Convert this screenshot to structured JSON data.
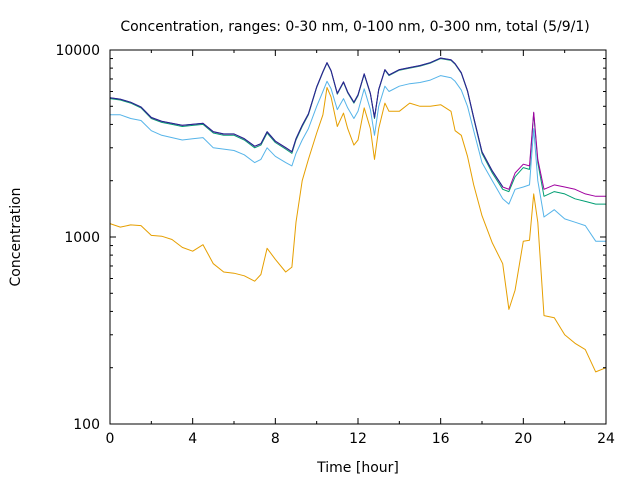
{
  "chart_data": {
    "type": "line",
    "title": "Concentration, ranges: 0-30 nm, 0-100 nm, 0-300 nm, total (5/9/1)",
    "xlabel": "Time [hour]",
    "ylabel": "Concentration",
    "xlim": [
      0,
      24
    ],
    "ylim": [
      100,
      10000
    ],
    "yscale": "log",
    "grid": false,
    "legend": "none",
    "x_ticks": [
      0,
      4,
      8,
      12,
      16,
      20,
      24
    ],
    "x_tick_labels": [
      "0",
      "4",
      "8",
      "12",
      "16",
      "20",
      "24"
    ],
    "y_ticks": [
      100,
      1000,
      10000
    ],
    "y_tick_labels": [
      "100",
      "1000",
      "10000"
    ],
    "series": [
      {
        "color": "#e69f00",
        "x": [
          0,
          0.5,
          1,
          1.5,
          2,
          2.5,
          3,
          3.5,
          4,
          4.5,
          5,
          5.5,
          6,
          6.5,
          7,
          7.3,
          7.6,
          8,
          8.5,
          8.8,
          9,
          9.3,
          9.6,
          10,
          10.3,
          10.5,
          10.7,
          11,
          11.3,
          11.5,
          11.8,
          12,
          12.3,
          12.6,
          12.8,
          13,
          13.3,
          13.5,
          14,
          14.5,
          15,
          15.5,
          16,
          16.5,
          16.7,
          17,
          17.3,
          17.6,
          18,
          18.5,
          19,
          19.3,
          19.6,
          20,
          20.3,
          20.5,
          20.7,
          21,
          21.5,
          22,
          22.5,
          23,
          23.5,
          24
        ],
        "y": [
          1180,
          1130,
          1160,
          1150,
          1020,
          1010,
          970,
          880,
          840,
          910,
          720,
          650,
          640,
          620,
          580,
          630,
          870,
          760,
          650,
          690,
          1200,
          2000,
          2600,
          3600,
          4500,
          6300,
          5600,
          3900,
          4600,
          3800,
          3100,
          3300,
          4900,
          3800,
          2600,
          3800,
          5200,
          4700,
          4700,
          5200,
          5000,
          5000,
          5100,
          4700,
          3700,
          3500,
          2700,
          1900,
          1300,
          930,
          720,
          410,
          520,
          950,
          960,
          1700,
          1200,
          380,
          370,
          300,
          270,
          250,
          190,
          200
        ]
      },
      {
        "color": "#56b4e9",
        "x": [
          0,
          0.5,
          1,
          1.5,
          2,
          2.5,
          3,
          3.5,
          4,
          4.5,
          5,
          5.5,
          6,
          6.5,
          7,
          7.3,
          7.6,
          8,
          8.5,
          8.8,
          9,
          9.3,
          9.6,
          10,
          10.3,
          10.5,
          10.7,
          11,
          11.3,
          11.5,
          11.8,
          12,
          12.3,
          12.6,
          12.8,
          13,
          13.3,
          13.5,
          14,
          14.5,
          15,
          15.5,
          16,
          16.5,
          16.7,
          17,
          17.3,
          17.6,
          18,
          18.5,
          19,
          19.3,
          19.6,
          20,
          20.3,
          20.5,
          20.7,
          21,
          21.5,
          22,
          22.5,
          23,
          23.5,
          24
        ],
        "y": [
          4500,
          4500,
          4300,
          4200,
          3700,
          3500,
          3400,
          3300,
          3350,
          3400,
          3000,
          2950,
          2900,
          2750,
          2500,
          2600,
          3000,
          2700,
          2500,
          2400,
          2800,
          3300,
          3800,
          5000,
          6000,
          6800,
          6200,
          4800,
          5500,
          4900,
          4300,
          4700,
          6200,
          4800,
          3500,
          5000,
          6400,
          6000,
          6400,
          6600,
          6700,
          6900,
          7300,
          7100,
          6800,
          6100,
          5000,
          3700,
          2500,
          2000,
          1600,
          1500,
          1800,
          1850,
          1900,
          3800,
          2000,
          1280,
          1400,
          1250,
          1200,
          1150,
          950,
          950
        ]
      },
      {
        "color": "#009e73",
        "x": [
          0,
          0.5,
          1,
          1.5,
          2,
          2.5,
          3,
          3.5,
          4,
          4.5,
          5,
          5.5,
          6,
          6.5,
          7,
          7.3,
          7.6,
          8,
          8.5,
          8.8,
          9,
          9.3,
          9.6,
          10,
          10.3,
          10.5,
          10.7,
          11,
          11.3,
          11.5,
          11.8,
          12,
          12.3,
          12.6,
          12.8,
          13,
          13.3,
          13.5,
          14,
          14.5,
          15,
          15.5,
          16,
          16.5,
          16.7,
          17,
          17.3,
          17.6,
          18,
          18.5,
          19,
          19.3,
          19.6,
          20,
          20.3,
          20.5,
          20.7,
          21,
          21.5,
          22,
          22.5,
          23,
          23.5,
          24
        ],
        "y": [
          5500,
          5400,
          5200,
          4900,
          4300,
          4100,
          4000,
          3900,
          3950,
          4000,
          3600,
          3500,
          3500,
          3300,
          3000,
          3100,
          3600,
          3200,
          2950,
          2800,
          3300,
          3900,
          4500,
          6300,
          7600,
          8500,
          7700,
          5800,
          6700,
          5900,
          5200,
          5700,
          7400,
          5800,
          4300,
          6100,
          7800,
          7300,
          7800,
          8000,
          8200,
          8500,
          9000,
          8800,
          8400,
          7500,
          6000,
          4300,
          2800,
          2200,
          1800,
          1750,
          2100,
          2350,
          2300,
          4600,
          2500,
          1650,
          1750,
          1700,
          1600,
          1550,
          1500,
          1500
        ]
      },
      {
        "color": "#a000a0",
        "x": [
          0,
          0.5,
          1,
          1.5,
          2,
          2.5,
          3,
          3.5,
          4,
          4.5,
          5,
          5.5,
          6,
          6.5,
          7,
          7.3,
          7.6,
          8,
          8.5,
          8.8,
          9,
          9.3,
          9.6,
          10,
          10.3,
          10.5,
          10.7,
          11,
          11.3,
          11.5,
          11.8,
          12,
          12.3,
          12.6,
          12.8,
          13,
          13.3,
          13.5,
          14,
          14.5,
          15,
          15.5,
          16,
          16.5,
          16.7,
          17,
          17.3,
          17.6,
          18,
          18.5,
          19,
          19.3,
          19.6,
          20,
          20.3,
          20.5,
          20.7,
          21,
          21.5,
          22,
          22.5,
          23,
          23.5,
          24
        ],
        "y": [
          5550,
          5450,
          5250,
          4950,
          4350,
          4150,
          4050,
          3950,
          4000,
          4050,
          3650,
          3550,
          3550,
          3350,
          3050,
          3150,
          3650,
          3250,
          3000,
          2850,
          3350,
          3950,
          4550,
          6350,
          7650,
          8550,
          7750,
          5850,
          6750,
          5950,
          5250,
          5750,
          7450,
          5850,
          4350,
          6150,
          7850,
          7350,
          7850,
          8050,
          8250,
          8550,
          9050,
          8850,
          8450,
          7550,
          6050,
          4350,
          2850,
          2250,
          1850,
          1800,
          2200,
          2450,
          2400,
          4650,
          2600,
          1800,
          1900,
          1850,
          1800,
          1700,
          1650,
          1650
        ]
      },
      {
        "color": "#1f2b8f",
        "x": [
          0,
          0.5,
          1,
          1.5,
          2,
          2.5,
          3,
          3.5,
          4,
          4.5,
          5,
          5.5,
          6,
          6.5,
          7,
          7.3,
          7.6,
          8,
          8.5,
          8.8,
          9,
          9.3,
          9.6,
          10,
          10.3,
          10.5,
          10.7,
          11,
          11.3,
          11.5,
          11.8,
          12,
          12.3,
          12.6,
          12.8,
          13,
          13.3,
          13.5,
          14,
          14.5,
          15,
          15.5,
          16,
          16.5,
          16.7,
          17,
          17.3,
          17.6,
          18,
          18.5,
          19
        ],
        "y": [
          5560,
          5460,
          5260,
          4960,
          4360,
          4160,
          4060,
          3960,
          4010,
          4060,
          3660,
          3560,
          3560,
          3360,
          3060,
          3160,
          3660,
          3260,
          3010,
          2860,
          3360,
          3960,
          4560,
          6360,
          7660,
          8560,
          7760,
          5860,
          6760,
          5960,
          5260,
          5760,
          7460,
          5860,
          4360,
          6160,
          7860,
          7360,
          7860,
          8060,
          8260,
          8560,
          9060,
          8860,
          8460,
          7560,
          6060,
          4360,
          2860,
          2260,
          1860
        ]
      }
    ]
  }
}
